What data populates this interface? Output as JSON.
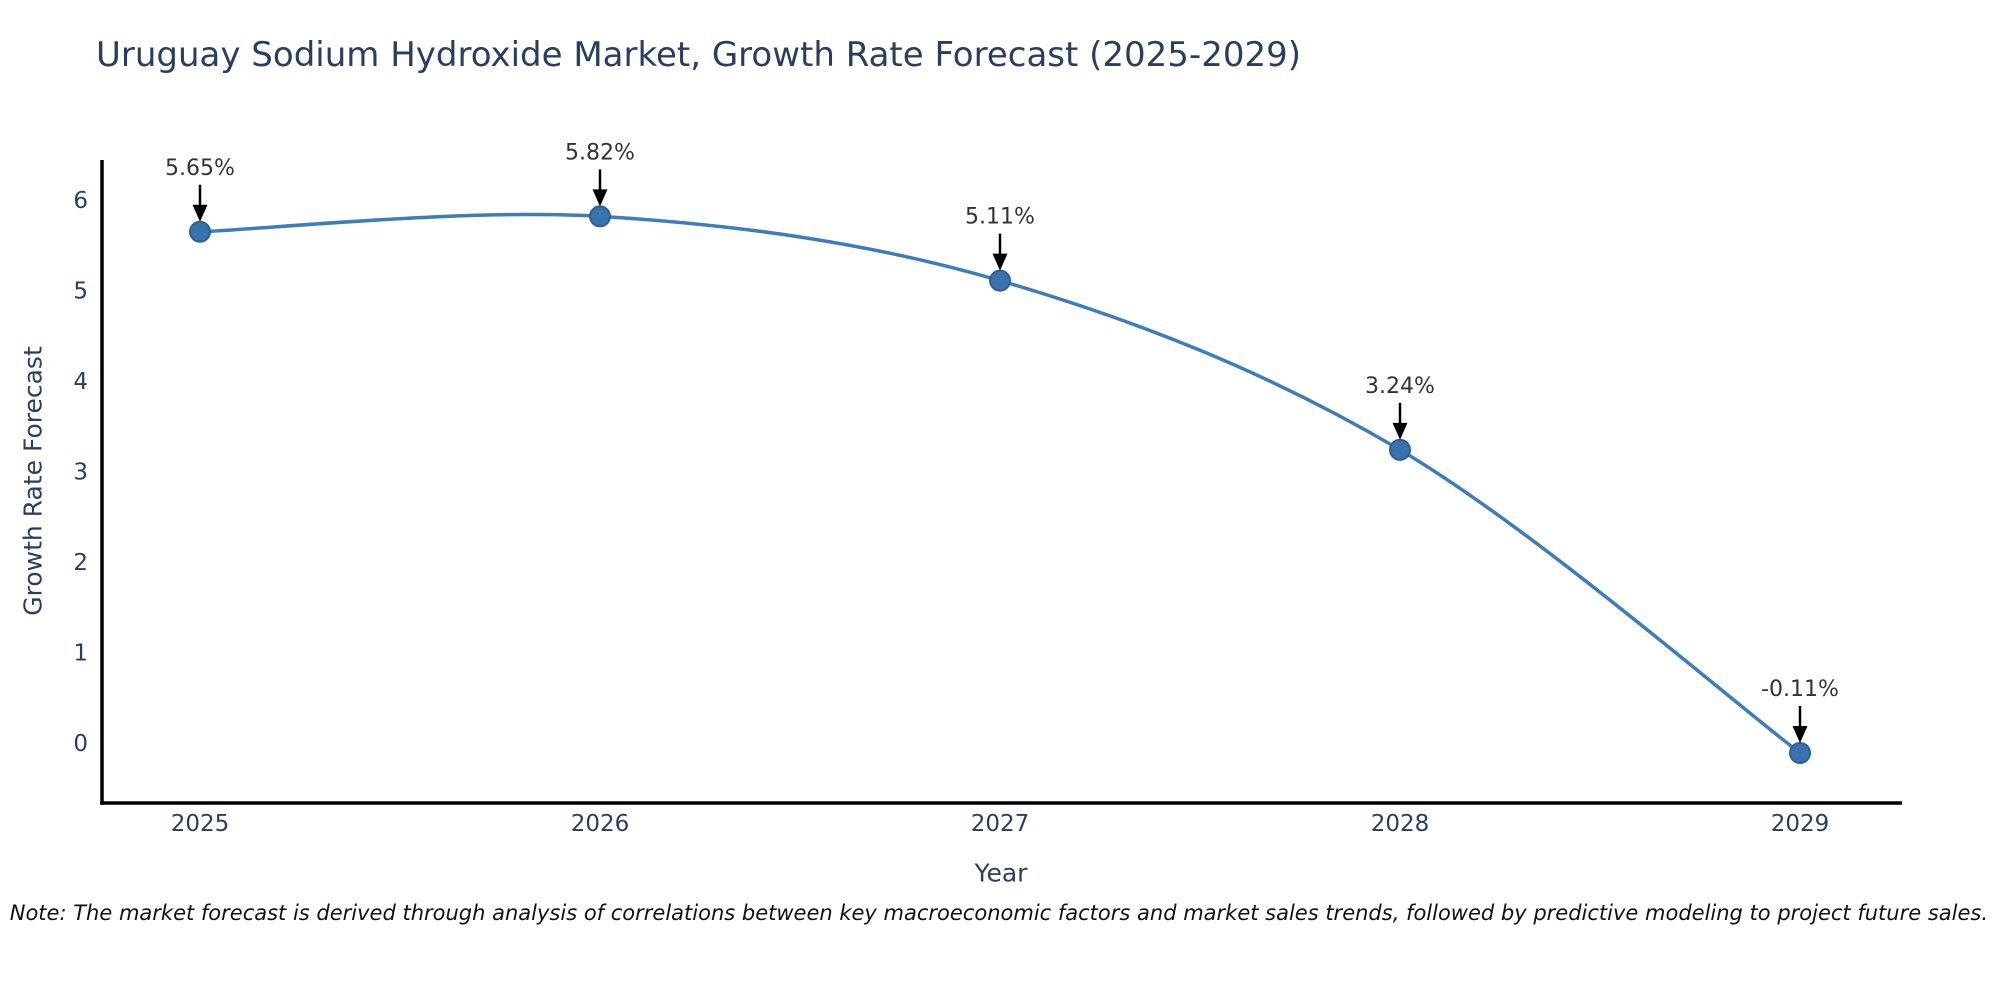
{
  "note": "Note: The market forecast is derived through analysis of correlations between key macroeconomic factors and market sales trends, followed by predictive modeling to project future sales.",
  "chart_data": {
    "type": "line",
    "title": "Uruguay Sodium Hydroxide Market, Growth Rate Forecast (2025-2029)",
    "xlabel": "Year",
    "ylabel": "Growth Rate Forecast",
    "x": [
      2025,
      2026,
      2027,
      2028,
      2029
    ],
    "values": [
      5.65,
      5.82,
      5.11,
      3.24,
      -0.11
    ],
    "point_labels": [
      "5.65%",
      "5.82%",
      "5.11%",
      "3.24%",
      "-0.11%"
    ],
    "xticks": [
      2025,
      2026,
      2027,
      2028,
      2029
    ],
    "yticks": [
      0,
      1,
      2,
      3,
      4,
      5,
      6
    ],
    "xlim": [
      2024.755,
      2029.255
    ],
    "ylim": [
      -0.663,
      6.443
    ],
    "line_shape": "spline",
    "grid": false,
    "legend": false,
    "colors": {
      "line": "#3e7db8",
      "marker": "#3a72ae",
      "marker_edge": "#2d5f94",
      "axis_line": "#000000",
      "tick_text": "#2a3f5f",
      "annotation_text": "#333333",
      "annotation_arrow": "#000000",
      "title_text": "#2a3f5f",
      "note_text": "#111111",
      "background": "#ffffff"
    }
  }
}
